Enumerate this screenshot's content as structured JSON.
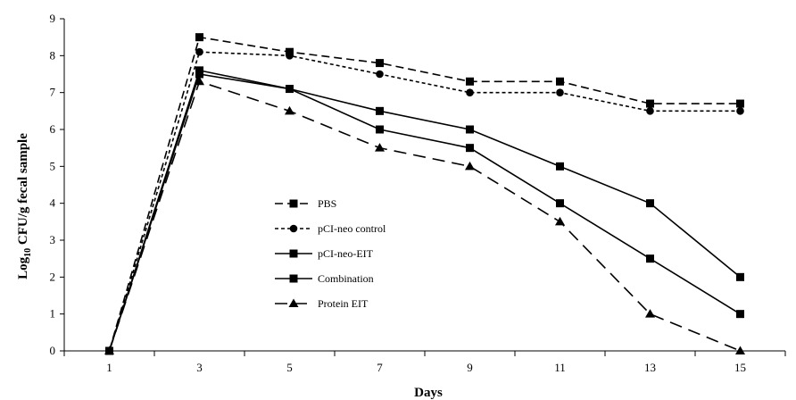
{
  "chart_data": {
    "type": "line",
    "title": "",
    "xlabel": "Days",
    "ylabel": "Log10 CFU/g fecal sample",
    "ylabel_base": "Log",
    "ylabel_sub": "10",
    "ylabel_rest": " CFU/g fecal sample",
    "x": [
      1,
      3,
      5,
      7,
      9,
      11,
      13,
      15
    ],
    "xlim": [
      0,
      16
    ],
    "ylim": [
      0,
      9
    ],
    "xticks": [
      1,
      3,
      5,
      7,
      9,
      11,
      13,
      15
    ],
    "yticks": [
      0,
      1,
      2,
      3,
      4,
      5,
      6,
      7,
      8,
      9
    ],
    "grid": false,
    "legend_position": "center-left",
    "series": [
      {
        "name": "PBS",
        "marker": "square",
        "dash": "long",
        "values": [
          0,
          8.5,
          8.1,
          7.8,
          7.3,
          7.3,
          6.7,
          6.7
        ]
      },
      {
        "name": "pCI-neo control",
        "marker": "circle",
        "dash": "short",
        "values": [
          0,
          8.1,
          8.0,
          7.5,
          7.0,
          7.0,
          6.5,
          6.5
        ]
      },
      {
        "name": "pCI-neo-EIT",
        "marker": "square",
        "dash": "solid",
        "values": [
          0,
          7.6,
          7.1,
          6.5,
          6.0,
          5.0,
          4.0,
          2.0
        ]
      },
      {
        "name": "Combination",
        "marker": "square",
        "dash": "solid",
        "values": [
          0,
          7.5,
          7.1,
          6.0,
          5.5,
          4.0,
          2.5,
          1.0
        ]
      },
      {
        "name": "Protein EIT",
        "marker": "triangle",
        "dash": "longdash",
        "values": [
          0,
          7.3,
          6.5,
          5.5,
          5.0,
          3.5,
          1.0,
          0.0
        ]
      }
    ]
  }
}
